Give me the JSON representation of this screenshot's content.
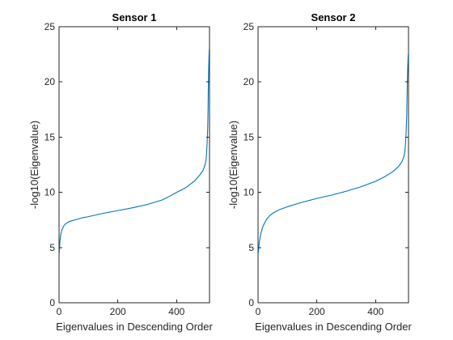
{
  "chart_data": [
    {
      "type": "line",
      "title": "Sensor 1",
      "xlabel": "Eigenvalues in Descending Order",
      "ylabel": "-log10(Eigenvalue)",
      "xlim": [
        0,
        512
      ],
      "ylim": [
        0,
        25
      ],
      "xticks": [
        0,
        200,
        400
      ],
      "yticks": [
        0,
        5,
        10,
        15,
        20,
        25
      ],
      "grid": false,
      "color": "#0072BD",
      "series": [
        {
          "x": [
            1,
            3,
            6,
            10,
            15,
            20,
            30,
            40,
            60,
            80,
            100,
            150,
            200,
            250,
            300,
            350,
            380,
            400,
            430,
            460,
            480,
            490,
            497,
            500,
            502,
            504,
            506,
            507,
            508,
            509,
            510,
            511
          ],
          "values": [
            4.5,
            5.6,
            6.2,
            6.6,
            6.9,
            7.1,
            7.3,
            7.4,
            7.55,
            7.7,
            7.8,
            8.1,
            8.35,
            8.6,
            8.9,
            9.3,
            9.7,
            10.0,
            10.4,
            11.0,
            11.6,
            12.0,
            12.5,
            12.9,
            13.5,
            14.5,
            16.0,
            17.5,
            19.5,
            21.0,
            22.0,
            23.0
          ]
        }
      ]
    },
    {
      "type": "line",
      "title": "Sensor 2",
      "xlabel": "Eigenvalues in Descending Order",
      "ylabel": "-log10(Eigenvalue)",
      "xlim": [
        0,
        512
      ],
      "ylim": [
        0,
        25
      ],
      "xticks": [
        0,
        200,
        400
      ],
      "yticks": [
        0,
        5,
        10,
        15,
        20,
        25
      ],
      "grid": false,
      "color": "#0072BD",
      "series": [
        {
          "x": [
            1,
            3,
            6,
            10,
            15,
            20,
            30,
            40,
            50,
            70,
            100,
            150,
            200,
            250,
            300,
            350,
            400,
            430,
            460,
            480,
            490,
            497,
            500,
            502,
            504,
            506,
            507,
            508,
            509,
            510,
            511
          ],
          "values": [
            4.5,
            5.2,
            5.8,
            6.3,
            6.8,
            7.1,
            7.6,
            7.9,
            8.1,
            8.4,
            8.7,
            9.1,
            9.45,
            9.75,
            10.1,
            10.5,
            11.0,
            11.4,
            11.9,
            12.4,
            12.8,
            13.3,
            13.8,
            14.5,
            15.5,
            17.0,
            18.5,
            20.0,
            21.0,
            21.8,
            22.5
          ]
        }
      ]
    }
  ]
}
